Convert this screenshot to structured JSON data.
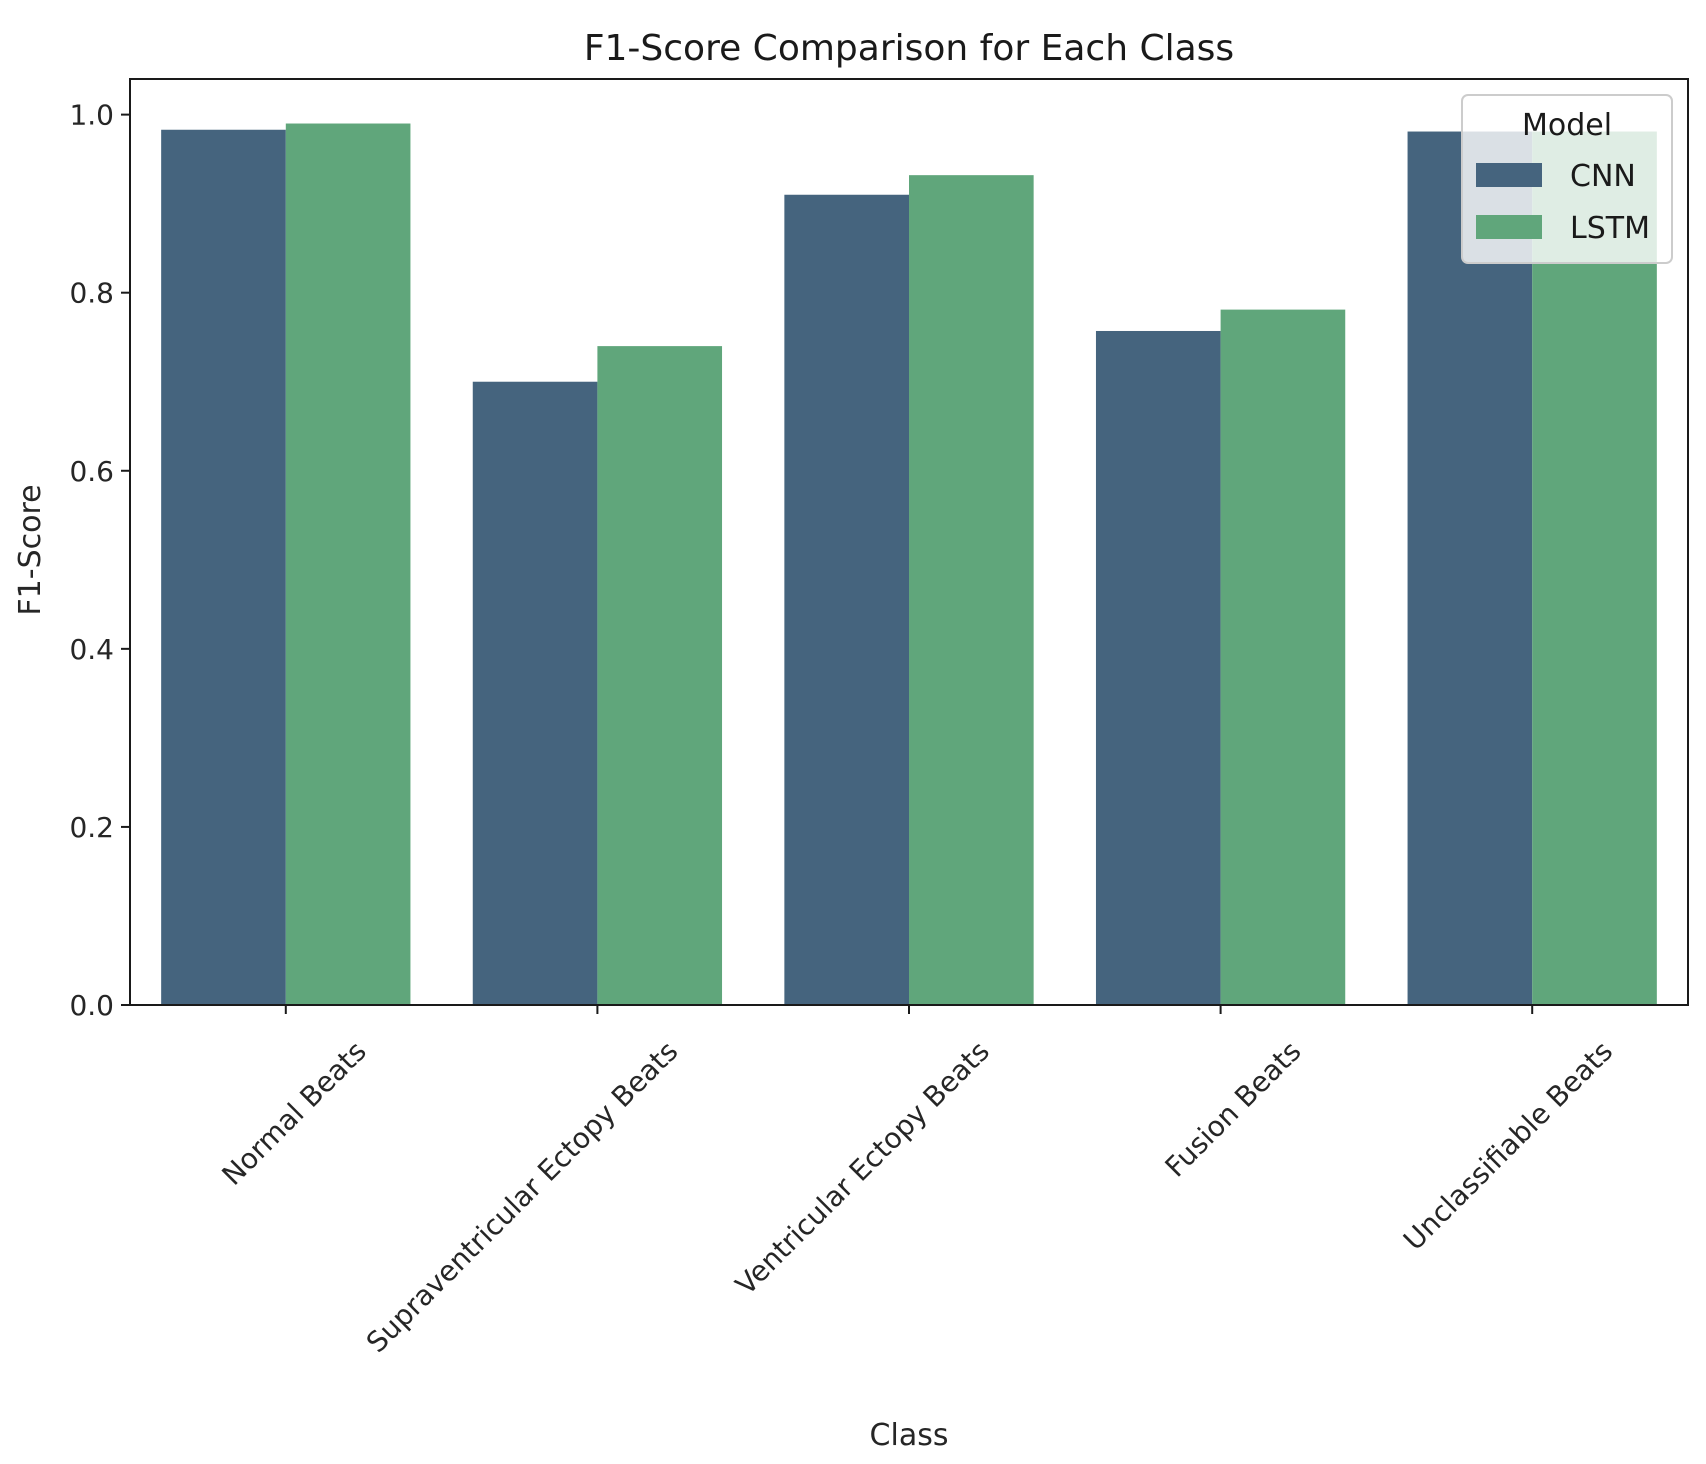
{
  "chart_data": {
    "type": "bar",
    "title": "F1-Score Comparison for Each Class",
    "xlabel": "Class",
    "ylabel": "F1-Score",
    "ylim": [
      0,
      1.04
    ],
    "yticks": [
      "0.0",
      "0.2",
      "0.4",
      "0.6",
      "0.8",
      "1.0"
    ],
    "categories": [
      "Normal Beats",
      "Supraventricular Ectopy Beats",
      "Ventricular Ectopy Beats",
      "Fusion Beats",
      "Unclassifiable Beats"
    ],
    "series": [
      {
        "name": "CNN",
        "color": "#45647e",
        "values": [
          0.983,
          0.7,
          0.91,
          0.757,
          0.981
        ]
      },
      {
        "name": "LSTM",
        "color": "#60a67b",
        "values": [
          0.99,
          0.74,
          0.932,
          0.781,
          0.981
        ]
      }
    ],
    "legend": {
      "title": "Model",
      "placement": "top-right"
    },
    "grid": false
  }
}
